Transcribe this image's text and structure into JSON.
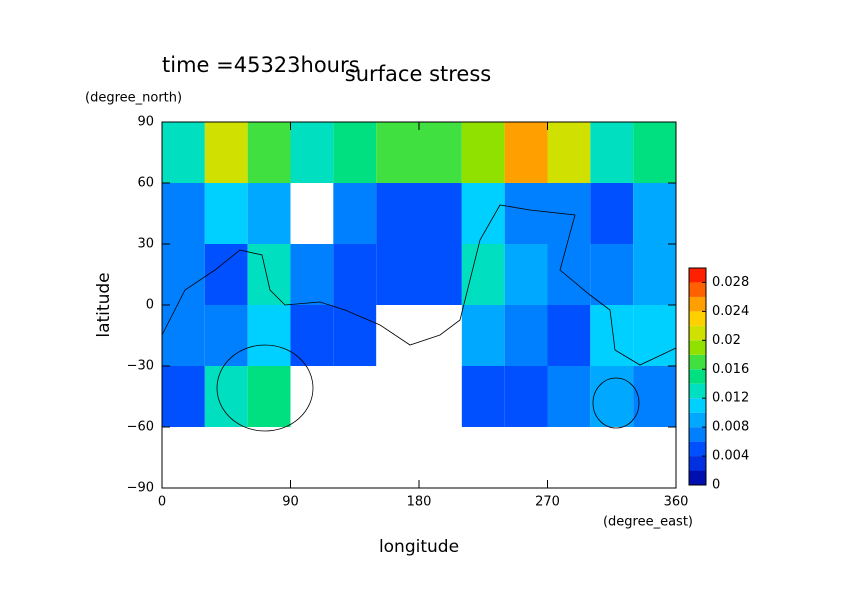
{
  "chart_data": {
    "type": "contour",
    "title": "surface stress",
    "subtitle": "time =45323hours",
    "x_label": "longitude",
    "x_units": "(degree_east)",
    "y_label": "latitude",
    "y_units": "(degree_north)",
    "x": [
      15,
      45,
      75,
      105,
      135,
      165,
      195,
      225,
      255,
      285,
      315,
      345
    ],
    "y": [
      75,
      45,
      15,
      -15,
      -45,
      -75
    ],
    "z": [
      [
        0.012,
        0.02,
        0.016,
        0.012,
        0.014,
        0.016,
        0.016,
        0.018,
        0.024,
        0.02,
        0.012,
        0.014
      ],
      [
        0.006,
        0.01,
        0.008,
        null,
        0.006,
        0.004,
        0.004,
        0.01,
        0.006,
        0.006,
        0.004,
        0.008
      ],
      [
        0.006,
        0.004,
        0.012,
        0.006,
        0.004,
        0.004,
        0.004,
        0.012,
        0.008,
        0.006,
        0.006,
        0.008
      ],
      [
        0.006,
        0.006,
        0.01,
        0.004,
        0.004,
        null,
        null,
        0.008,
        0.006,
        0.004,
        0.01,
        0.01
      ],
      [
        0.004,
        0.012,
        0.014,
        null,
        null,
        null,
        null,
        0.004,
        0.004,
        0.006,
        0.008,
        0.006
      ],
      [
        null,
        null,
        null,
        null,
        null,
        null,
        null,
        null,
        null,
        null,
        null,
        null
      ]
    ],
    "xlim": [
      0,
      360
    ],
    "xticks": [
      0,
      90,
      180,
      270,
      360
    ],
    "ylim": [
      -90,
      90
    ],
    "yticks": [
      {
        "value": -90,
        "label": "−90"
      },
      {
        "value": -60,
        "label": "−60"
      },
      {
        "value": -30,
        "label": "−30"
      },
      0,
      30,
      60,
      90
    ],
    "levels": [
      0,
      0.002,
      0.004,
      0.006,
      0.008,
      0.01,
      0.012,
      0.014,
      0.016,
      0.018,
      0.02,
      0.022,
      0.024,
      0.026,
      0.028,
      0.03
    ],
    "level_colors": [
      "#0010b0",
      "#0030e0",
      "#0050ff",
      "#0080ff",
      "#00a8ff",
      "#00d0ff",
      "#00e0c0",
      "#00e080",
      "#40e040",
      "#90e000",
      "#d0e000",
      "#ffd000",
      "#ffa000",
      "#ff6000",
      "#ff2000"
    ],
    "colorbar_ticks": [
      0,
      0.004,
      0.008,
      0.012,
      0.016,
      0.02,
      0.024,
      0.028
    ]
  }
}
